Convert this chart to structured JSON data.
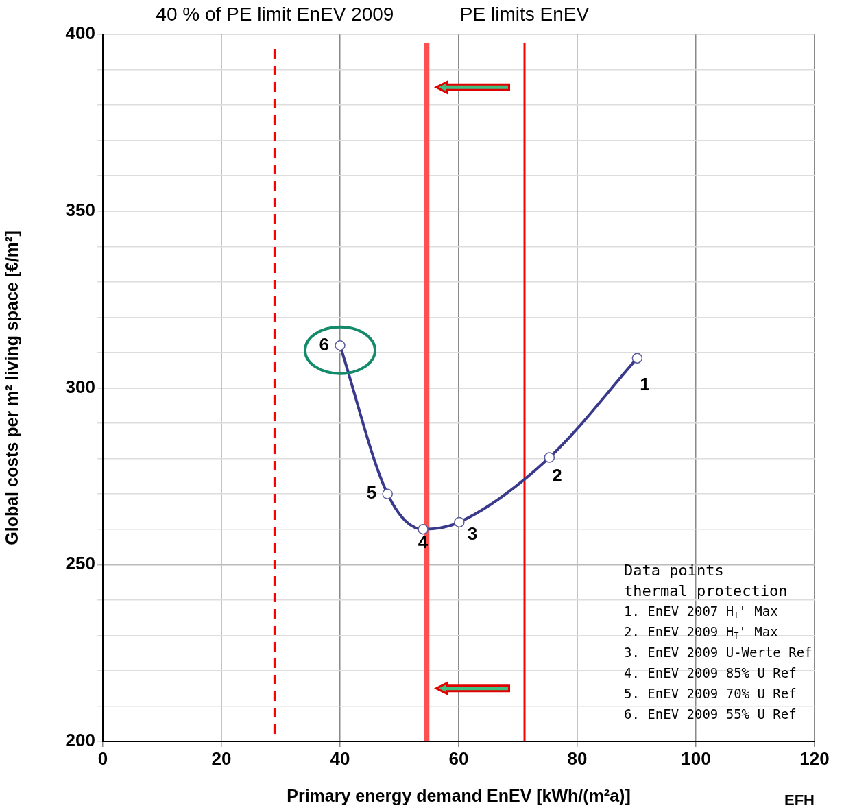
{
  "chart_data": {
    "type": "line",
    "xlabel": "Primary energy demand EnEV [kWh/(m²a)]",
    "ylabel": "Global costs per m² living space [€/m²]",
    "x": [
      40,
      48,
      54,
      60.1,
      75.3,
      90.1
    ],
    "series": [
      {
        "color": "#3a3a8c",
        "values": [
          312,
          270,
          260,
          262,
          280.3,
          308.4
        ]
      }
    ],
    "xlim": [
      0,
      120
    ],
    "xticks": [
      0,
      20,
      40,
      60,
      80,
      100,
      120
    ],
    "ylim": [
      200,
      400
    ],
    "yticks": [
      200,
      {
        "value": 210,
        "label": null
      },
      {
        "value": 220,
        "label": null
      },
      {
        "value": 230,
        "label": null
      },
      {
        "value": 240,
        "label": null
      },
      250,
      {
        "value": 260,
        "label": null
      },
      {
        "value": 270,
        "label": null
      },
      {
        "value": 280,
        "label": null
      },
      {
        "value": 290,
        "label": null
      },
      300,
      {
        "value": 310,
        "label": null
      },
      {
        "value": 320,
        "label": null
      },
      {
        "value": 330,
        "label": null
      },
      {
        "value": 340,
        "label": null
      },
      350,
      {
        "value": 360,
        "label": null
      },
      {
        "value": 370,
        "label": null
      },
      {
        "value": 380,
        "label": null
      },
      {
        "value": 390,
        "label": null
      },
      400
    ],
    "grid": true,
    "legend": false,
    "marker": "circle",
    "ref_lines": [
      {
        "axis": "x",
        "value": 29,
        "label": "40 % of PE limit EnEV 2009",
        "color": "#ff0000",
        "line_style": "dashed"
      },
      {
        "axis": "x",
        "value": 54.6,
        "color": "#ff5050",
        "line_style": "solid"
      },
      {
        "axis": "x",
        "value": 71.1,
        "label": "PE limits EnEV",
        "color": "#ff0000",
        "line_style": "solid"
      }
    ],
    "annotations": [
      {
        "text": "6",
        "x": 40,
        "y": 312
      },
      {
        "text": "5",
        "x": 48,
        "y": 270
      },
      {
        "text": "4",
        "x": 54,
        "y": 260
      },
      {
        "text": "3",
        "x": 60.1,
        "y": 262
      },
      {
        "text": "2",
        "x": 75.3,
        "y": 280.3
      },
      {
        "text": "1",
        "x": 90.1,
        "y": 308.4
      },
      "Data points",
      "thermal protection",
      "1. EnEV 2007 H$_{T}$' Max",
      "2. EnEV 2009 H$_{T}$' Max",
      "3. EnEV 2009 U-Werte Ref",
      "4. EnEV 2009 85% U Ref",
      "5. EnEV 2009 70% U Ref",
      "6. EnEV 2009 55% U Ref",
      "EFH"
    ]
  }
}
